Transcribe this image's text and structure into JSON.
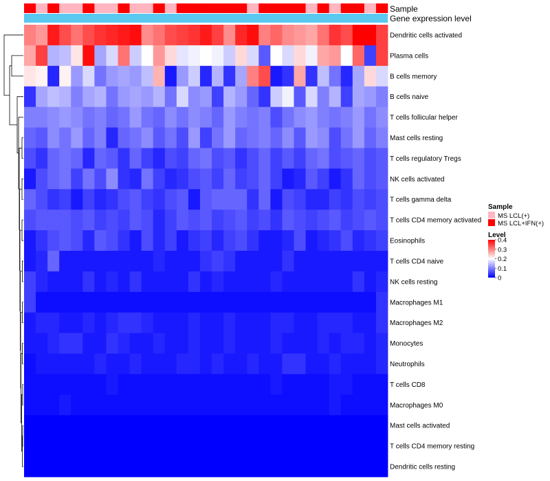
{
  "colors": {
    "low": "#0000ff",
    "mid": "#ffffff",
    "high": "#ff0000",
    "sample_lcl": "#ffb6c1",
    "sample_ifn": "#ff0000",
    "gene_expression_bar": "#5bc8f0",
    "dendrogram": "#000000"
  },
  "chart_data": {
    "type": "heatmap",
    "title": "",
    "annotation_labels": {
      "sample": "Sample",
      "gene_expression": "Gene expression level"
    },
    "column_samples": [
      "MS LCL+IFN(+)",
      "MS LCL(+)",
      "MS LCL+IFN(+)",
      "MS LCL(+)",
      "MS LCL(+)",
      "MS LCL+IFN(+)",
      "MS LCL(+)",
      "MS LCL(+)",
      "MS LCL+IFN(+)",
      "MS LCL(+)",
      "MS LCL(+)",
      "MS LCL+IFN(+)",
      "MS LCL(+)",
      "MS LCL+IFN(+)",
      "MS LCL+IFN(+)",
      "MS LCL+IFN(+)",
      "MS LCL+IFN(+)",
      "MS LCL+IFN(+)",
      "MS LCL+IFN(+)",
      "MS LCL(+)",
      "MS LCL+IFN(+)",
      "MS LCL+IFN(+)",
      "MS LCL+IFN(+)",
      "MS LCL+IFN(+)",
      "MS LCL(+)",
      "MS LCL+IFN(+)",
      "MS LCL(+)",
      "MS LCL+IFN(+)",
      "MS LCL+IFN(+)",
      "MS LCL(+)",
      "MS LCL+IFN(+)"
    ],
    "rows": [
      {
        "label": "Dendritic cells activated",
        "values": [
          0.3,
          0.28,
          0.38,
          0.34,
          0.31,
          0.34,
          0.36,
          0.37,
          0.38,
          0.39,
          0.29,
          0.31,
          0.34,
          0.35,
          0.36,
          0.38,
          0.35,
          0.29,
          0.37,
          0.39,
          0.3,
          0.32,
          0.29,
          0.28,
          0.27,
          0.31,
          0.36,
          0.34,
          0.4,
          0.4,
          0.35
        ]
      },
      {
        "label": "Plasma cells",
        "values": [
          0.27,
          0.35,
          0.14,
          0.15,
          0.22,
          0.39,
          0.13,
          0.17,
          0.31,
          0.16,
          0.2,
          0.28,
          0.23,
          0.18,
          0.19,
          0.2,
          0.19,
          0.16,
          0.23,
          0.17,
          0.07,
          0.2,
          0.17,
          0.23,
          0.19,
          0.27,
          0.28,
          0.2,
          0.32,
          0.05,
          0.35
        ]
      },
      {
        "label": "B cells memory",
        "values": [
          0.22,
          0.21,
          0.03,
          0.21,
          0.12,
          0.17,
          0.09,
          0.12,
          0.13,
          0.12,
          0.15,
          0.26,
          0.02,
          0.12,
          0.16,
          0.03,
          0.14,
          0.04,
          0.13,
          0.3,
          0.34,
          0.02,
          0.04,
          0.27,
          0.04,
          0.15,
          0.09,
          0.03,
          0.13,
          0.23,
          0.17
        ]
      },
      {
        "label": "B cells naive",
        "values": [
          0.04,
          0.13,
          0.15,
          0.14,
          0.1,
          0.13,
          0.14,
          0.09,
          0.12,
          0.13,
          0.12,
          0.14,
          0.09,
          0.17,
          0.11,
          0.12,
          0.05,
          0.14,
          0.12,
          0.08,
          0.04,
          0.16,
          0.19,
          0.07,
          0.17,
          0.1,
          0.14,
          0.05,
          0.13,
          0.12,
          0.1
        ]
      },
      {
        "label": "T cells follicular helper",
        "values": [
          0.1,
          0.1,
          0.11,
          0.12,
          0.11,
          0.09,
          0.1,
          0.08,
          0.09,
          0.12,
          0.09,
          0.08,
          0.11,
          0.09,
          0.11,
          0.1,
          0.08,
          0.12,
          0.1,
          0.09,
          0.1,
          0.06,
          0.09,
          0.11,
          0.12,
          0.1,
          0.09,
          0.1,
          0.12,
          0.09,
          0.11
        ]
      },
      {
        "label": "Mast cells resting",
        "values": [
          0.08,
          0.07,
          0.11,
          0.09,
          0.12,
          0.08,
          0.1,
          0.03,
          0.08,
          0.09,
          0.11,
          0.07,
          0.09,
          0.06,
          0.12,
          0.05,
          0.09,
          0.12,
          0.08,
          0.09,
          0.1,
          0.08,
          0.11,
          0.07,
          0.12,
          0.11,
          0.06,
          0.09,
          0.12,
          0.08,
          0.1
        ]
      },
      {
        "label": "T cells regulatory  Tregs",
        "values": [
          0.06,
          0.04,
          0.08,
          0.09,
          0.08,
          0.03,
          0.08,
          0.07,
          0.04,
          0.08,
          0.05,
          0.03,
          0.06,
          0.05,
          0.08,
          0.09,
          0.06,
          0.07,
          0.04,
          0.06,
          0.08,
          0.05,
          0.07,
          0.05,
          0.08,
          0.09,
          0.06,
          0.07,
          0.08,
          0.06,
          0.07
        ]
      },
      {
        "label": "NK cells activated",
        "values": [
          0.02,
          0.06,
          0.08,
          0.09,
          0.05,
          0.09,
          0.06,
          0.11,
          0.04,
          0.03,
          0.09,
          0.05,
          0.03,
          0.04,
          0.06,
          0.07,
          0.05,
          0.08,
          0.05,
          0.06,
          0.08,
          0.05,
          0.02,
          0.03,
          0.07,
          0.05,
          0.02,
          0.04,
          0.08,
          0.06,
          0.07
        ]
      },
      {
        "label": "T cells gamma delta",
        "values": [
          0.08,
          0.06,
          0.04,
          0.05,
          0.02,
          0.05,
          0.03,
          0.04,
          0.06,
          0.07,
          0.05,
          0.04,
          0.06,
          0.07,
          0.02,
          0.07,
          0.08,
          0.08,
          0.08,
          0.04,
          0.08,
          0.02,
          0.06,
          0.05,
          0.03,
          0.03,
          0.05,
          0.04,
          0.06,
          0.05,
          0.06
        ]
      },
      {
        "label": "T cells CD4 memory activated",
        "values": [
          0.06,
          0.07,
          0.07,
          0.07,
          0.06,
          0.07,
          0.05,
          0.06,
          0.05,
          0.07,
          0.06,
          0.03,
          0.05,
          0.07,
          0.06,
          0.07,
          0.05,
          0.06,
          0.07,
          0.05,
          0.06,
          0.04,
          0.07,
          0.06,
          0.05,
          0.06,
          0.07,
          0.05,
          0.06,
          0.07,
          0.06
        ]
      },
      {
        "label": "Eosinophils",
        "values": [
          0.02,
          0.04,
          0.06,
          0.07,
          0.06,
          0.03,
          0.07,
          0.06,
          0.04,
          0.02,
          0.06,
          0.03,
          0.05,
          0.02,
          0.04,
          0.05,
          0.03,
          0.05,
          0.06,
          0.04,
          0.02,
          0.02,
          0.03,
          0.06,
          0.02,
          0.03,
          0.04,
          0.06,
          0.03,
          0.04,
          0.05
        ]
      },
      {
        "label": "T cells CD4 naive",
        "values": [
          0.02,
          0.03,
          0.08,
          0.02,
          0.02,
          0.02,
          0.02,
          0.02,
          0.02,
          0.02,
          0.02,
          0.03,
          0.02,
          0.02,
          0.02,
          0.04,
          0.05,
          0.04,
          0.02,
          0.02,
          0.02,
          0.02,
          0.04,
          0.02,
          0.02,
          0.02,
          0.02,
          0.02,
          0.02,
          0.02,
          0.02
        ]
      },
      {
        "label": "NK cells resting",
        "values": [
          0.05,
          0.03,
          0.02,
          0.02,
          0.02,
          0.04,
          0.02,
          0.03,
          0.02,
          0.04,
          0.02,
          0.02,
          0.02,
          0.02,
          0.04,
          0.02,
          0.03,
          0.02,
          0.02,
          0.02,
          0.02,
          0.03,
          0.02,
          0.02,
          0.02,
          0.02,
          0.02,
          0.02,
          0.04,
          0.02,
          0.03
        ]
      },
      {
        "label": "Macrophages M1",
        "values": [
          0.05,
          0.01,
          0.01,
          0.01,
          0.01,
          0.01,
          0.01,
          0.01,
          0.01,
          0.01,
          0.01,
          0.01,
          0.01,
          0.01,
          0.01,
          0.01,
          0.01,
          0.01,
          0.01,
          0.01,
          0.01,
          0.01,
          0.01,
          0.01,
          0.01,
          0.01,
          0.01,
          0.01,
          0.01,
          0.01,
          0.04
        ]
      },
      {
        "label": "Macrophages M2",
        "values": [
          0.02,
          0.03,
          0.03,
          0.02,
          0.02,
          0.03,
          0.02,
          0.03,
          0.04,
          0.04,
          0.03,
          0.02,
          0.02,
          0.02,
          0.03,
          0.02,
          0.02,
          0.03,
          0.02,
          0.02,
          0.02,
          0.03,
          0.03,
          0.02,
          0.02,
          0.03,
          0.03,
          0.03,
          0.02,
          0.02,
          0.04
        ]
      },
      {
        "label": "Monocytes",
        "values": [
          0.02,
          0.02,
          0.03,
          0.04,
          0.04,
          0.02,
          0.02,
          0.04,
          0.03,
          0.02,
          0.02,
          0.03,
          0.02,
          0.02,
          0.03,
          0.02,
          0.02,
          0.03,
          0.02,
          0.02,
          0.02,
          0.03,
          0.02,
          0.02,
          0.02,
          0.03,
          0.02,
          0.03,
          0.03,
          0.02,
          0.03
        ]
      },
      {
        "label": "Neutrophils",
        "values": [
          0.01,
          0.02,
          0.02,
          0.02,
          0.02,
          0.02,
          0.03,
          0.02,
          0.02,
          0.03,
          0.02,
          0.02,
          0.02,
          0.03,
          0.03,
          0.02,
          0.03,
          0.02,
          0.02,
          0.03,
          0.02,
          0.02,
          0.04,
          0.04,
          0.02,
          0.02,
          0.03,
          0.02,
          0.02,
          0.02,
          0.03
        ]
      },
      {
        "label": "T cells CD8",
        "values": [
          0.01,
          0.01,
          0.01,
          0.01,
          0.01,
          0.01,
          0.01,
          0.02,
          0.01,
          0.01,
          0.01,
          0.01,
          0.01,
          0.01,
          0.01,
          0.01,
          0.01,
          0.01,
          0.01,
          0.01,
          0.01,
          0.02,
          0.01,
          0.01,
          0.01,
          0.01,
          0.02,
          0.02,
          0.01,
          0.01,
          0.01
        ]
      },
      {
        "label": "Macrophages M0",
        "values": [
          0.01,
          0.01,
          0.01,
          0.02,
          0.01,
          0.01,
          0.01,
          0.01,
          0.01,
          0.01,
          0.01,
          0.01,
          0.01,
          0.01,
          0.01,
          0.01,
          0.01,
          0.01,
          0.01,
          0.01,
          0.01,
          0.01,
          0.01,
          0.01,
          0.01,
          0.01,
          0.02,
          0.01,
          0.01,
          0.01,
          0.01
        ]
      },
      {
        "label": "Mast cells activated",
        "values": [
          0.0,
          0.0,
          0.0,
          0.0,
          0.0,
          0.0,
          0.0,
          0.0,
          0.0,
          0.0,
          0.0,
          0.0,
          0.0,
          0.0,
          0.0,
          0.0,
          0.0,
          0.0,
          0.0,
          0.0,
          0.0,
          0.0,
          0.0,
          0.0,
          0.0,
          0.0,
          0.0,
          0.0,
          0.0,
          0.0,
          0.0
        ]
      },
      {
        "label": "T cells CD4 memory resting",
        "values": [
          0.0,
          0.0,
          0.0,
          0.0,
          0.0,
          0.0,
          0.0,
          0.0,
          0.0,
          0.0,
          0.0,
          0.0,
          0.0,
          0.0,
          0.0,
          0.0,
          0.0,
          0.0,
          0.0,
          0.0,
          0.0,
          0.0,
          0.0,
          0.0,
          0.0,
          0.0,
          0.0,
          0.0,
          0.0,
          0.0,
          0.0
        ]
      },
      {
        "label": "Dendritic cells resting",
        "values": [
          0.0,
          0.0,
          0.0,
          0.0,
          0.0,
          0.0,
          0.0,
          0.0,
          0.0,
          0.0,
          0.0,
          0.0,
          0.0,
          0.0,
          0.0,
          0.0,
          0.0,
          0.0,
          0.0,
          0.0,
          0.0,
          0.0,
          0.0,
          0.0,
          0.0,
          0.0,
          0.0,
          0.0,
          0.0,
          0.0,
          0.0
        ]
      }
    ],
    "color_scale": {
      "min": 0,
      "max": 0.4
    },
    "legend": {
      "sample_title": "Sample",
      "sample_entries": [
        "MS LCL(+)",
        "MS LCL+IFN(+)"
      ],
      "level_title": "Level",
      "level_ticks": [
        "0.4",
        "0.3",
        "0.2",
        "0.1",
        "0"
      ]
    },
    "dendrogram": "rows"
  }
}
